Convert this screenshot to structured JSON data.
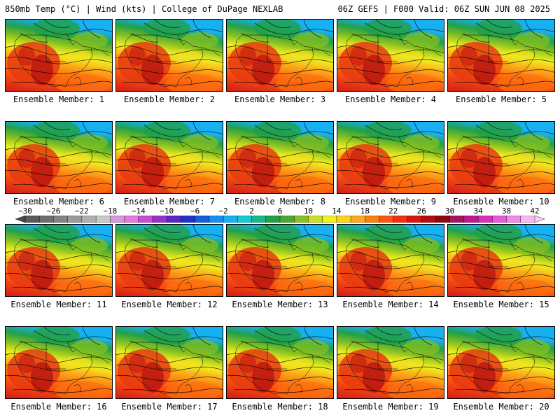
{
  "header": {
    "left": "850mb Temp (°C) | Wind (kts) | College of DuPage NEXLAB",
    "right": "06Z GEFS | F000 Valid: 06Z SUN JUN 08 2025"
  },
  "colorbar": {
    "labels": [
      "−30",
      "−26",
      "−22",
      "−18",
      "−14",
      "−10",
      "−6",
      "−2",
      "2",
      "6",
      "10",
      "14",
      "18",
      "22",
      "26",
      "30",
      "34",
      "38",
      "42"
    ],
    "colors": [
      "#5a5a5a",
      "#6e6e6e",
      "#838383",
      "#9a9a9a",
      "#b0b0b0",
      "#c8c8c8",
      "#d39ad8",
      "#e07ae0",
      "#c84cd8",
      "#9830c8",
      "#5a28c0",
      "#2032c8",
      "#1060e0",
      "#1a8ef0",
      "#18b0f0",
      "#16c8d0",
      "#1ab888",
      "#22a048",
      "#4aa830",
      "#88c020",
      "#c8e020",
      "#f0f020",
      "#fcd020",
      "#fca818",
      "#fc8010",
      "#fc5810",
      "#f03010",
      "#d81810",
      "#b01010",
      "#8c0810",
      "#a01860",
      "#c01890",
      "#d830b8",
      "#e858d8",
      "#f088e8",
      "#f8b8f0"
    ]
  },
  "panels": [
    {
      "caption": "Ensemble Member: 1"
    },
    {
      "caption": "Ensemble Member: 2"
    },
    {
      "caption": "Ensemble Member: 3"
    },
    {
      "caption": "Ensemble Member: 4"
    },
    {
      "caption": "Ensemble Member: 5"
    },
    {
      "caption": "Ensemble Member: 6"
    },
    {
      "caption": "Ensemble Member: 7"
    },
    {
      "caption": "Ensemble Member: 8"
    },
    {
      "caption": "Ensemble Member: 9"
    },
    {
      "caption": "Ensemble Member: 10"
    },
    {
      "caption": "Ensemble Member: 11"
    },
    {
      "caption": "Ensemble Member: 12"
    },
    {
      "caption": "Ensemble Member: 13"
    },
    {
      "caption": "Ensemble Member: 14"
    },
    {
      "caption": "Ensemble Member: 15"
    },
    {
      "caption": "Ensemble Member: 16"
    },
    {
      "caption": "Ensemble Member: 17"
    },
    {
      "caption": "Ensemble Member: 18"
    },
    {
      "caption": "Ensemble Member: 19"
    },
    {
      "caption": "Ensemble Member: 20"
    }
  ]
}
